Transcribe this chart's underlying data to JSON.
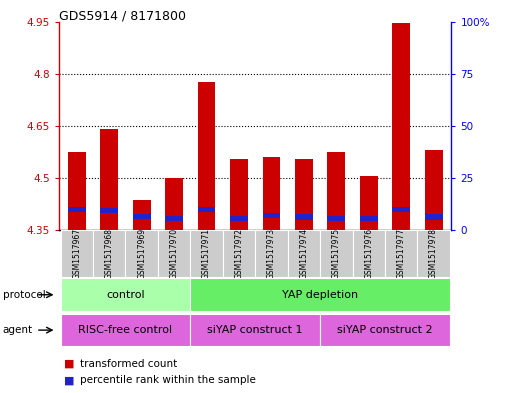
{
  "title": "GDS5914 / 8171800",
  "samples": [
    "GSM1517967",
    "GSM1517968",
    "GSM1517969",
    "GSM1517970",
    "GSM1517971",
    "GSM1517972",
    "GSM1517973",
    "GSM1517974",
    "GSM1517975",
    "GSM1517976",
    "GSM1517977",
    "GSM1517978"
  ],
  "red_top": [
    4.575,
    4.64,
    4.435,
    4.5,
    4.775,
    4.555,
    4.56,
    4.555,
    4.575,
    4.505,
    4.945,
    4.58
  ],
  "blue_mid": [
    4.408,
    4.405,
    4.388,
    4.382,
    4.408,
    4.382,
    4.392,
    4.387,
    4.382,
    4.382,
    4.408,
    4.387
  ],
  "baseline": 4.35,
  "ylim_left": [
    4.35,
    4.95
  ],
  "ylim_right": [
    0,
    100
  ],
  "yticks_left": [
    4.35,
    4.5,
    4.65,
    4.8,
    4.95
  ],
  "ytick_labels_left": [
    "4.35",
    "4.5",
    "4.65",
    "4.8",
    "4.95"
  ],
  "yticks_right": [
    0,
    25,
    50,
    75,
    100
  ],
  "ytick_labels_right": [
    "0",
    "25",
    "50",
    "75",
    "100%"
  ],
  "red_color": "#cc0000",
  "blue_color": "#2222cc",
  "bar_width": 0.55,
  "blue_bar_height": 0.015,
  "protocol_color_control": "#aaffaa",
  "protocol_color_yap": "#66ee66",
  "agent_color": "#dd66dd",
  "legend_red": "transformed count",
  "legend_blue": "percentile rank within the sample",
  "tick_label_bg": "#cccccc"
}
